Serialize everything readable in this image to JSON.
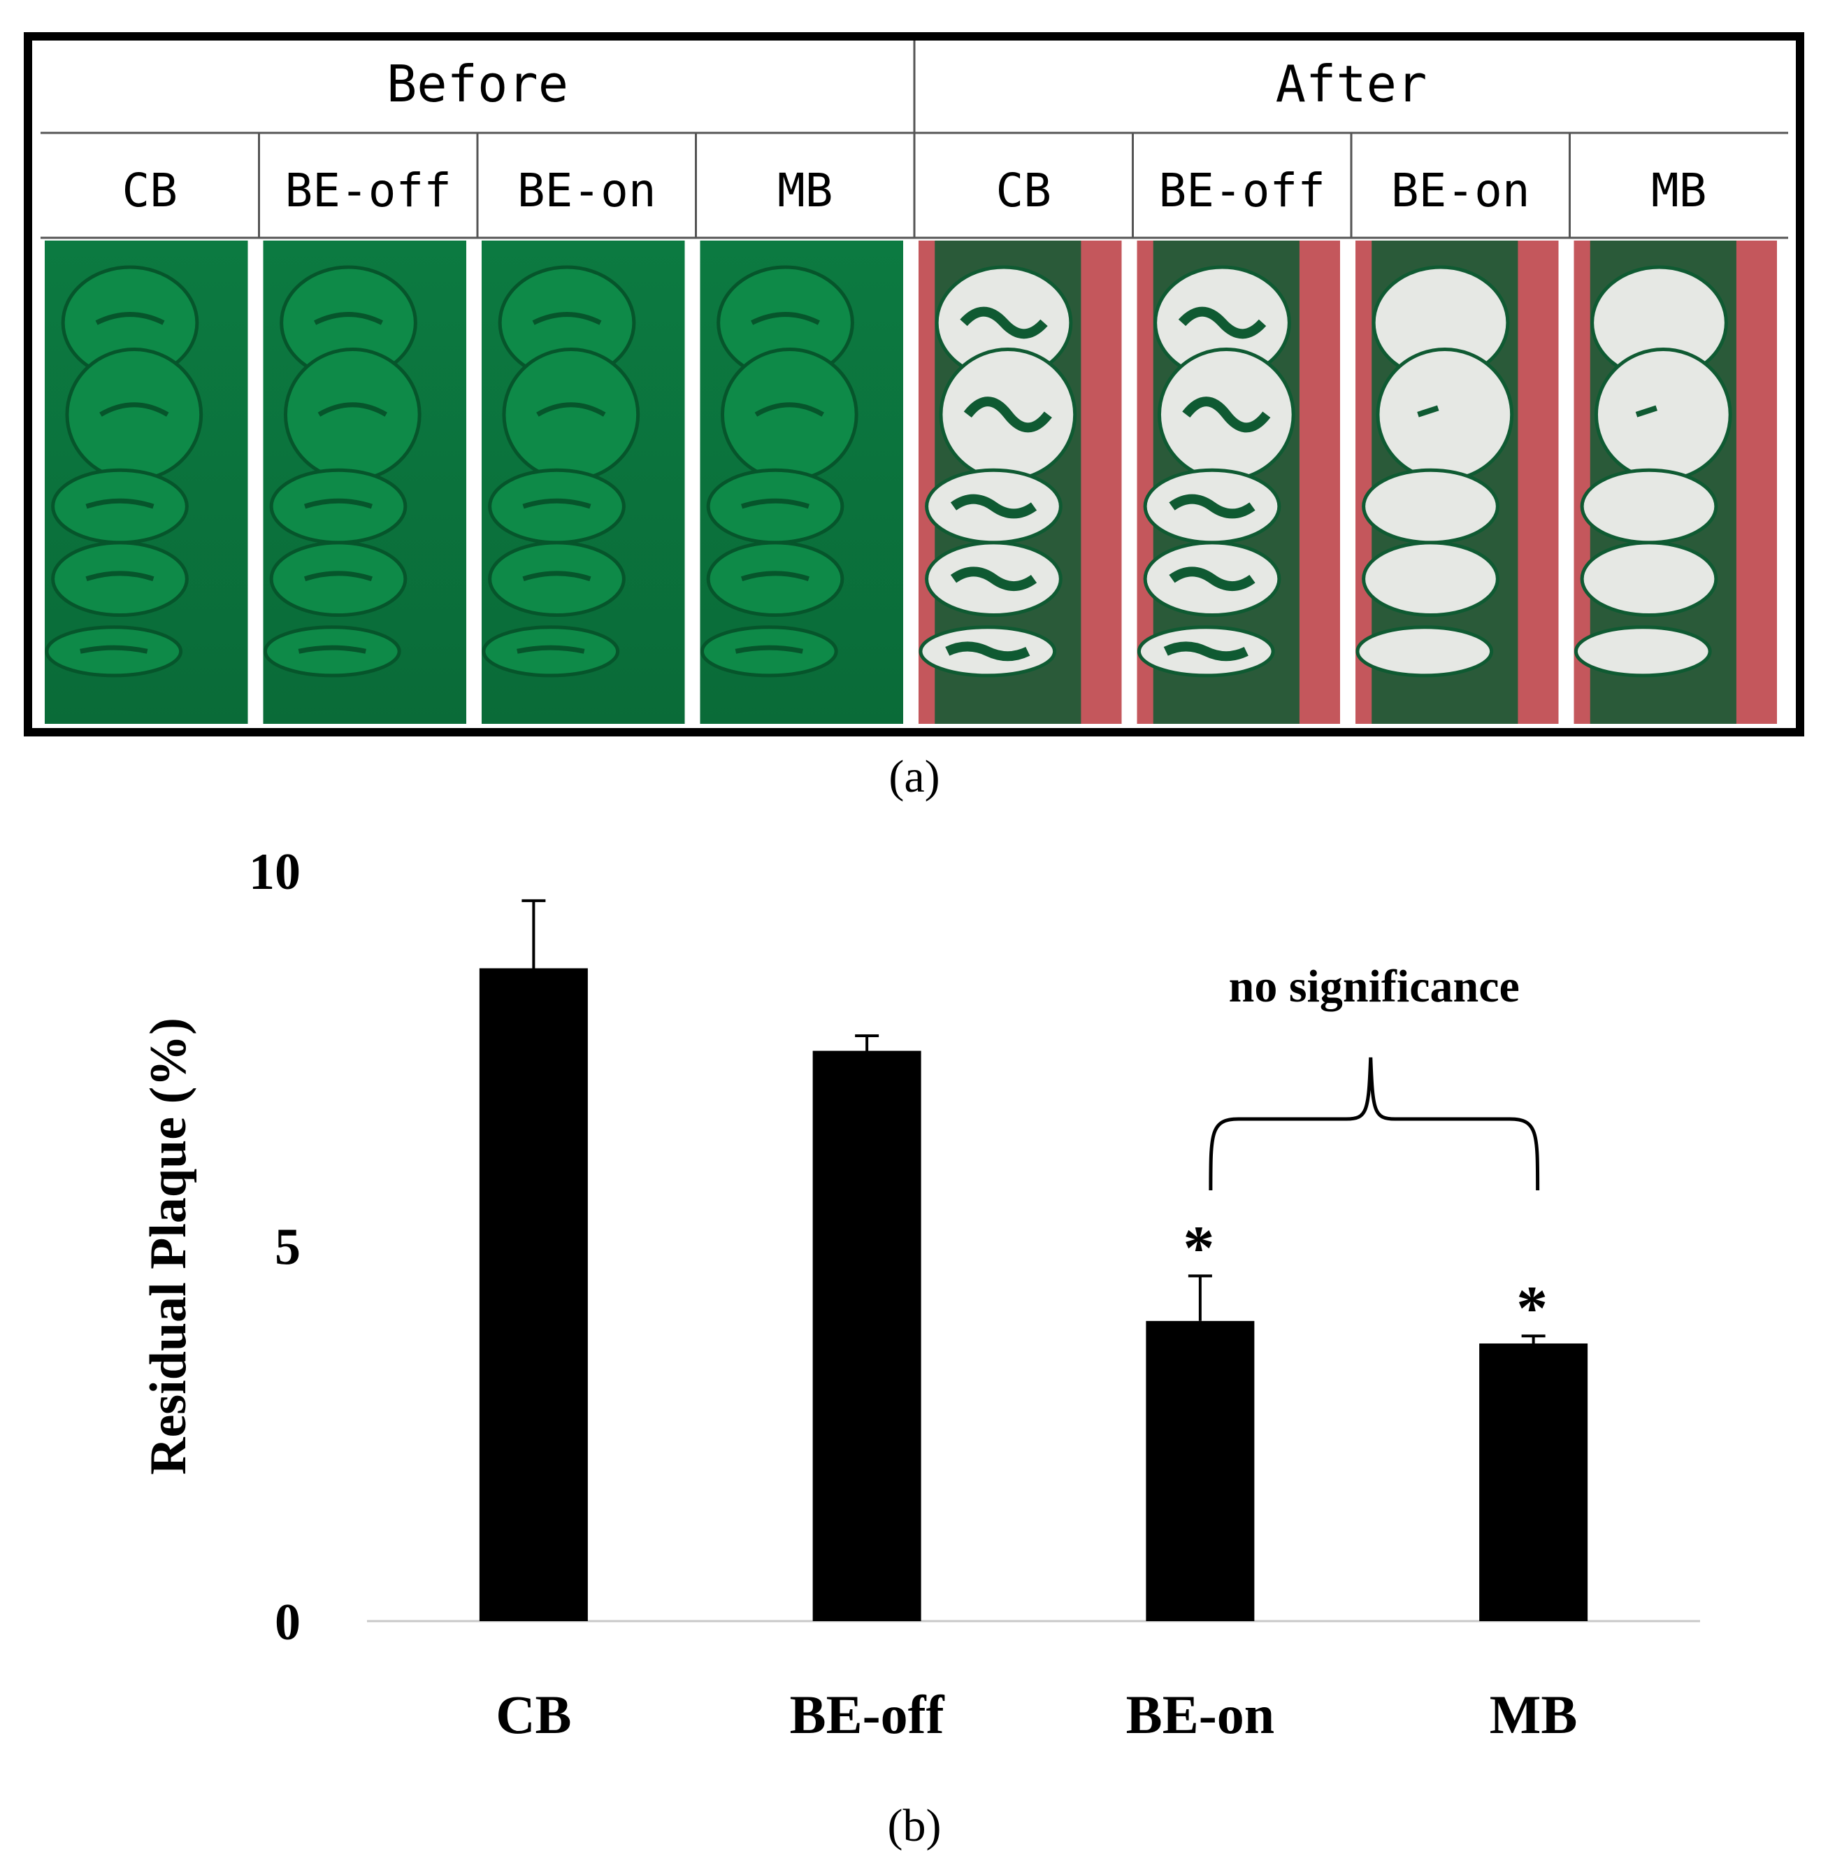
{
  "panel_a": {
    "label": "(a)",
    "groups": [
      {
        "title": "Before",
        "columns": [
          "CB",
          "BE-off",
          "BE-on",
          "MB"
        ]
      },
      {
        "title": "After",
        "columns": [
          "CB",
          "BE-off",
          "BE-on",
          "MB"
        ]
      }
    ],
    "colors": {
      "stain": "#0d7a40",
      "gum_after": "#c4575c",
      "tooth_clean": "#e6e8e4",
      "residual": "#0f5a32"
    },
    "residual_plaque_level": [
      0.6,
      0.55,
      0.15,
      0.12
    ]
  },
  "panel_b": {
    "label": "(b)",
    "annotation": "no significance",
    "significance_marker": "*"
  },
  "chart_data": {
    "type": "bar",
    "categories": [
      "CB",
      "BE-off",
      "BE-on",
      "MB"
    ],
    "values": [
      8.7,
      7.6,
      4.0,
      3.7
    ],
    "errors": [
      0.9,
      0.2,
      0.6,
      0.1
    ],
    "significant": [
      false,
      false,
      true,
      true
    ],
    "ylabel": "Residual Plaque (%)",
    "yticks": [
      0,
      5,
      10
    ],
    "ylim": [
      0,
      10
    ],
    "bar_color": "#000000",
    "grid": false,
    "legend": "none"
  }
}
